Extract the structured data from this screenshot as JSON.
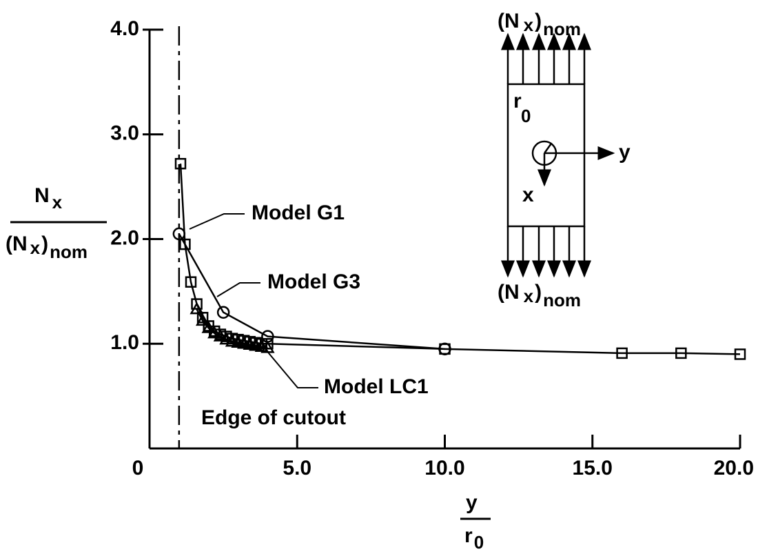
{
  "chart_data": {
    "type": "line",
    "xlabel": {
      "numerator": "y",
      "denominator": [
        "r",
        "0"
      ]
    },
    "ylabel": {
      "numerator": [
        "N",
        "x"
      ],
      "denominator": [
        "(N",
        "x",
        ")",
        "nom"
      ]
    },
    "xlim": [
      0,
      20
    ],
    "ylim": [
      0,
      4
    ],
    "xticks": [
      0,
      {
        "value": 5,
        "label": "5.0"
      },
      {
        "value": 10,
        "label": "10.0"
      },
      {
        "value": 15,
        "label": "15.0"
      },
      {
        "value": 20,
        "label": "20.0"
      }
    ],
    "yticks": [
      {
        "value": 1,
        "label": "1.0"
      },
      {
        "value": 2,
        "label": "2.0"
      },
      {
        "value": 3,
        "label": "3.0"
      },
      {
        "value": 4,
        "label": "4.0"
      }
    ],
    "vline": {
      "x": 1.0,
      "label": "Edge of cutout"
    },
    "series": [
      {
        "name": "Model G1",
        "color": "#000000",
        "marker": "circle",
        "x": [
          1.0,
          2.5,
          4.0,
          10.0
        ],
        "values": [
          2.05,
          1.3,
          1.07,
          0.95
        ]
      },
      {
        "name": "Model G3",
        "color": "#000000",
        "marker": "square",
        "x": [
          1.05,
          1.2,
          1.4,
          1.6,
          1.8,
          2.0,
          2.2,
          2.4,
          2.6,
          2.8,
          3.0,
          3.2,
          3.4,
          3.6,
          3.8,
          4.0,
          10.0,
          16.0,
          18.0,
          20.0
        ],
        "values": [
          2.72,
          1.95,
          1.59,
          1.38,
          1.25,
          1.17,
          1.12,
          1.09,
          1.07,
          1.05,
          1.04,
          1.03,
          1.02,
          1.01,
          1.0,
          1.0,
          0.95,
          0.91,
          0.91,
          0.9
        ]
      },
      {
        "name": "Model LC1",
        "color": "#000000",
        "marker": "triangle",
        "x": [
          1.6,
          1.8,
          2.0,
          2.2,
          2.4,
          2.6,
          2.8,
          3.0,
          3.2,
          3.4,
          3.6,
          3.8,
          4.0
        ],
        "values": [
          1.33,
          1.22,
          1.15,
          1.1,
          1.07,
          1.04,
          1.02,
          1.01,
          1.0,
          0.99,
          0.98,
          0.97,
          0.96
        ]
      }
    ],
    "inset": {
      "top_label": [
        "(N",
        "x",
        ")",
        "nom"
      ],
      "bottom_label": [
        "(N",
        "x",
        ")",
        "nom"
      ],
      "radius_label": [
        "r",
        "0"
      ],
      "y_axis": "y",
      "x_axis": "x"
    }
  }
}
